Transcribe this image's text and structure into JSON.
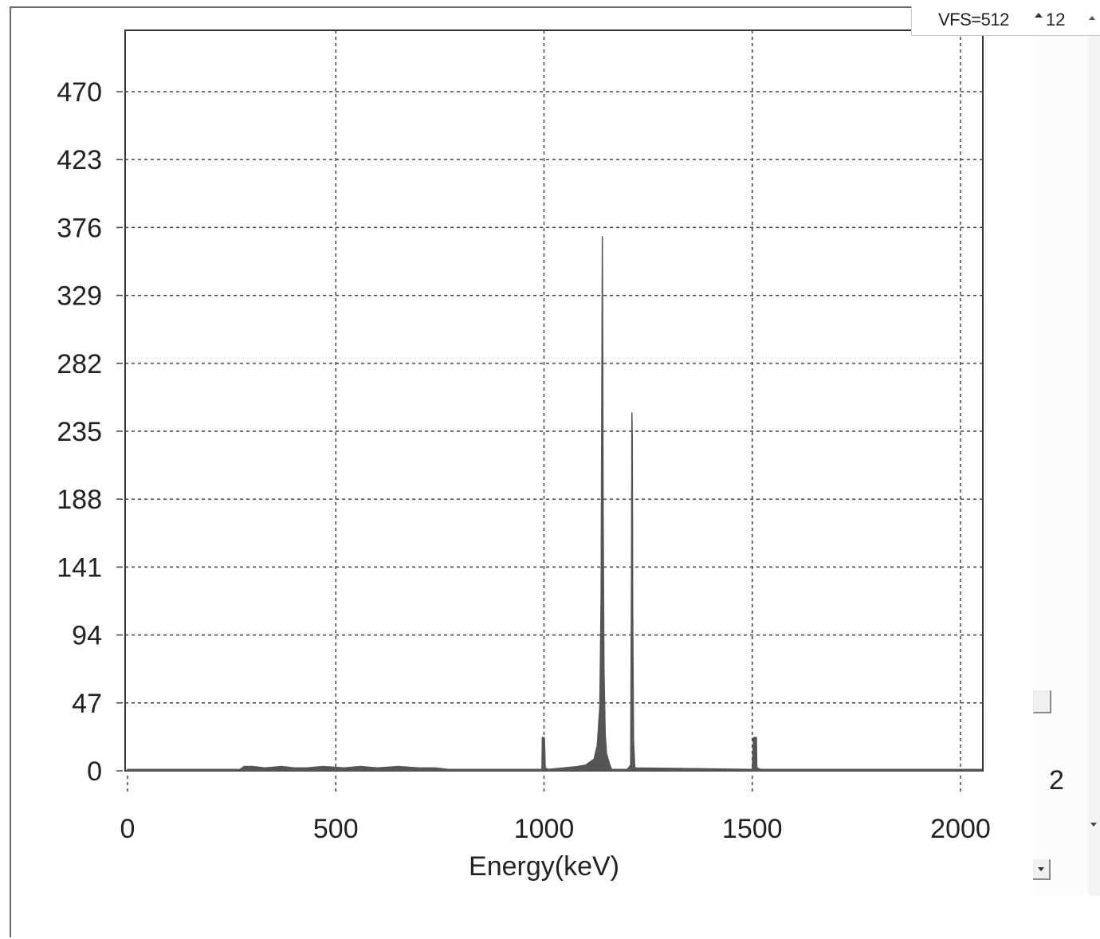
{
  "window": {
    "vfs_label": "VFS=512",
    "spin_value": "12",
    "channel_number": "2"
  },
  "icons": {
    "spin_up": "triangle-up-icon",
    "spin_down": "chevron-down-icon",
    "scroll_up": "arrow-up-icon",
    "scroll_down": "arrow-down-icon"
  },
  "colors": {
    "spectrum_fill": "#555555",
    "grid": "#444444",
    "axis": "#333333",
    "background": "#ffffff"
  },
  "chart_data": {
    "type": "area",
    "title": "",
    "xlabel": "Energy(keV)",
    "ylabel": "",
    "xlim": [
      0,
      2050
    ],
    "ylim": [
      0,
      512
    ],
    "grid": true,
    "xticks": [
      0,
      500,
      1000,
      1500,
      2000
    ],
    "yticks": [
      0,
      47,
      94,
      141,
      188,
      235,
      282,
      329,
      376,
      423,
      470
    ],
    "series": [
      {
        "values": [
          [
            0,
            1
          ],
          [
            270,
            1
          ],
          [
            280,
            3
          ],
          [
            300,
            3
          ],
          [
            330,
            2
          ],
          [
            370,
            3
          ],
          [
            400,
            2
          ],
          [
            430,
            2
          ],
          [
            470,
            3
          ],
          [
            520,
            2
          ],
          [
            560,
            3
          ],
          [
            600,
            2
          ],
          [
            650,
            3
          ],
          [
            700,
            2
          ],
          [
            740,
            2
          ],
          [
            770,
            1
          ],
          [
            995,
            1
          ],
          [
            996,
            23
          ],
          [
            1000,
            23
          ],
          [
            1001,
            22
          ],
          [
            1003,
            2
          ],
          [
            1010,
            1
          ],
          [
            1080,
            3
          ],
          [
            1100,
            4
          ],
          [
            1120,
            8
          ],
          [
            1128,
            18
          ],
          [
            1134,
            45
          ],
          [
            1137,
            120
          ],
          [
            1139,
            280
          ],
          [
            1140,
            370
          ],
          [
            1141,
            300
          ],
          [
            1142,
            180
          ],
          [
            1144,
            70
          ],
          [
            1147,
            25
          ],
          [
            1150,
            12
          ],
          [
            1157,
            5
          ],
          [
            1162,
            1
          ],
          [
            1200,
            1
          ],
          [
            1208,
            4
          ],
          [
            1210,
            140
          ],
          [
            1211,
            248
          ],
          [
            1212,
            230
          ],
          [
            1213,
            110
          ],
          [
            1215,
            20
          ],
          [
            1218,
            2
          ],
          [
            1500,
            1
          ],
          [
            1503,
            23
          ],
          [
            1510,
            23
          ],
          [
            1511,
            2
          ],
          [
            1520,
            1
          ],
          [
            2050,
            1
          ]
        ]
      }
    ]
  }
}
